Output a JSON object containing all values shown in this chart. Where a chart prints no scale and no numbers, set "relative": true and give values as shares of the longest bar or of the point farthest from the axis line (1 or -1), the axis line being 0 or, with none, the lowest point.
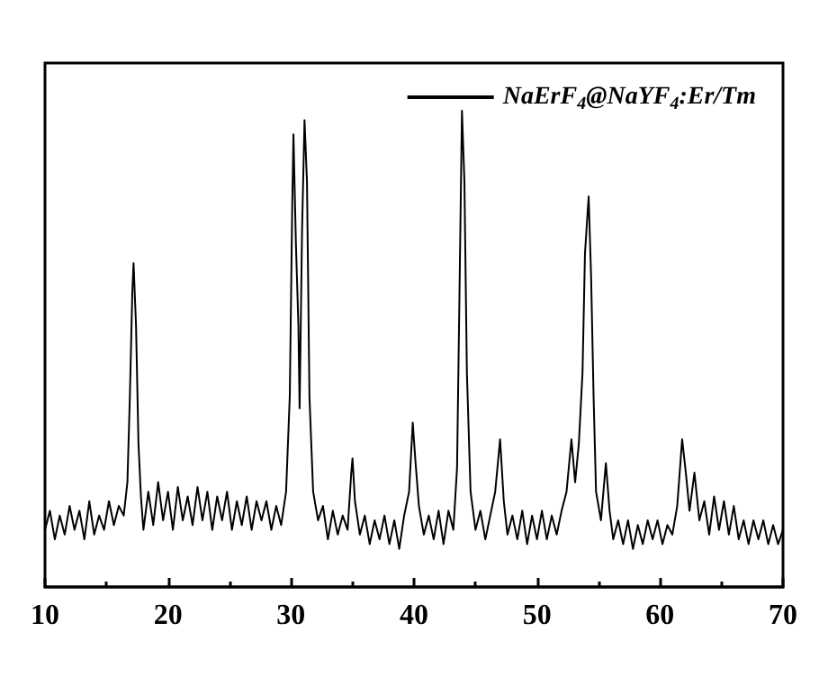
{
  "chart_data": {
    "type": "line",
    "relative": true,
    "xlim": [
      10,
      70
    ],
    "xticks": [
      10,
      20,
      30,
      40,
      50,
      60,
      70
    ],
    "legend": "top right",
    "marker": "none",
    "line_style": "solid",
    "grid": false,
    "tick_labels": "x",
    "x": [
      10.0,
      10.4,
      10.8,
      11.2,
      11.6,
      12.0,
      12.4,
      12.8,
      13.2,
      13.6,
      14.0,
      14.4,
      14.8,
      15.2,
      15.6,
      16.0,
      16.4,
      16.7,
      16.9,
      17.1,
      17.2,
      17.4,
      17.6,
      17.8,
      18.0,
      18.4,
      18.8,
      19.2,
      19.6,
      20.0,
      20.4,
      20.8,
      21.2,
      21.6,
      22.0,
      22.4,
      22.8,
      23.2,
      23.6,
      24.0,
      24.4,
      24.8,
      25.2,
      25.6,
      26.0,
      26.4,
      26.8,
      27.2,
      27.6,
      28.0,
      28.4,
      28.8,
      29.2,
      29.6,
      29.9,
      30.1,
      30.2,
      30.4,
      30.6,
      30.7,
      30.9,
      31.1,
      31.3,
      31.5,
      31.8,
      32.2,
      32.6,
      33.0,
      33.4,
      33.8,
      34.2,
      34.6,
      34.9,
      35.0,
      35.2,
      35.6,
      36.0,
      36.4,
      36.8,
      37.2,
      37.6,
      38.0,
      38.4,
      38.8,
      39.2,
      39.6,
      39.9,
      40.1,
      40.4,
      40.8,
      41.2,
      41.6,
      42.0,
      42.4,
      42.8,
      43.2,
      43.5,
      43.7,
      43.9,
      44.1,
      44.3,
      44.6,
      45.0,
      45.4,
      45.8,
      46.2,
      46.6,
      47.0,
      47.3,
      47.6,
      48.0,
      48.4,
      48.8,
      49.2,
      49.6,
      50.0,
      50.4,
      50.8,
      51.2,
      51.6,
      52.0,
      52.4,
      52.8,
      53.1,
      53.4,
      53.7,
      53.9,
      54.2,
      54.4,
      54.6,
      54.8,
      55.2,
      55.6,
      55.9,
      56.2,
      56.6,
      57.0,
      57.4,
      57.8,
      58.2,
      58.6,
      59.0,
      59.4,
      59.8,
      60.2,
      60.6,
      61.0,
      61.4,
      61.8,
      62.1,
      62.4,
      62.8,
      63.2,
      63.6,
      64.0,
      64.4,
      64.8,
      65.2,
      65.6,
      66.0,
      66.4,
      66.8,
      67.2,
      67.6,
      68.0,
      68.4,
      68.8,
      69.2,
      69.6,
      70.0
    ],
    "series": [
      {
        "name": "NaErF$_{4}$@NaYF$_{4}$:Er/Tm",
        "color": "#000000",
        "values": [
          0.12,
          0.16,
          0.1,
          0.15,
          0.11,
          0.17,
          0.12,
          0.16,
          0.1,
          0.18,
          0.11,
          0.15,
          0.12,
          0.18,
          0.13,
          0.17,
          0.15,
          0.22,
          0.4,
          0.62,
          0.68,
          0.55,
          0.3,
          0.19,
          0.12,
          0.2,
          0.13,
          0.22,
          0.14,
          0.2,
          0.12,
          0.21,
          0.14,
          0.19,
          0.13,
          0.21,
          0.14,
          0.2,
          0.12,
          0.19,
          0.14,
          0.2,
          0.12,
          0.18,
          0.13,
          0.19,
          0.12,
          0.18,
          0.14,
          0.18,
          0.12,
          0.17,
          0.13,
          0.2,
          0.4,
          0.8,
          0.95,
          0.72,
          0.55,
          0.375,
          0.75,
          0.98,
          0.85,
          0.4,
          0.2,
          0.14,
          0.17,
          0.1,
          0.16,
          0.11,
          0.15,
          0.12,
          0.24,
          0.27,
          0.18,
          0.11,
          0.15,
          0.09,
          0.14,
          0.1,
          0.15,
          0.09,
          0.14,
          0.08,
          0.15,
          0.2,
          0.345,
          0.27,
          0.17,
          0.11,
          0.15,
          0.1,
          0.16,
          0.09,
          0.16,
          0.12,
          0.25,
          0.62,
          1.0,
          0.85,
          0.45,
          0.2,
          0.12,
          0.16,
          0.1,
          0.15,
          0.2,
          0.31,
          0.18,
          0.11,
          0.15,
          0.1,
          0.16,
          0.09,
          0.15,
          0.1,
          0.16,
          0.1,
          0.15,
          0.11,
          0.16,
          0.2,
          0.31,
          0.22,
          0.3,
          0.45,
          0.7,
          0.82,
          0.65,
          0.4,
          0.2,
          0.14,
          0.26,
          0.16,
          0.1,
          0.14,
          0.09,
          0.14,
          0.08,
          0.13,
          0.09,
          0.14,
          0.1,
          0.14,
          0.09,
          0.13,
          0.11,
          0.17,
          0.31,
          0.24,
          0.16,
          0.24,
          0.14,
          0.18,
          0.11,
          0.19,
          0.12,
          0.18,
          0.11,
          0.17,
          0.1,
          0.14,
          0.09,
          0.14,
          0.1,
          0.14,
          0.09,
          0.13,
          0.09,
          0.12
        ]
      }
    ]
  }
}
